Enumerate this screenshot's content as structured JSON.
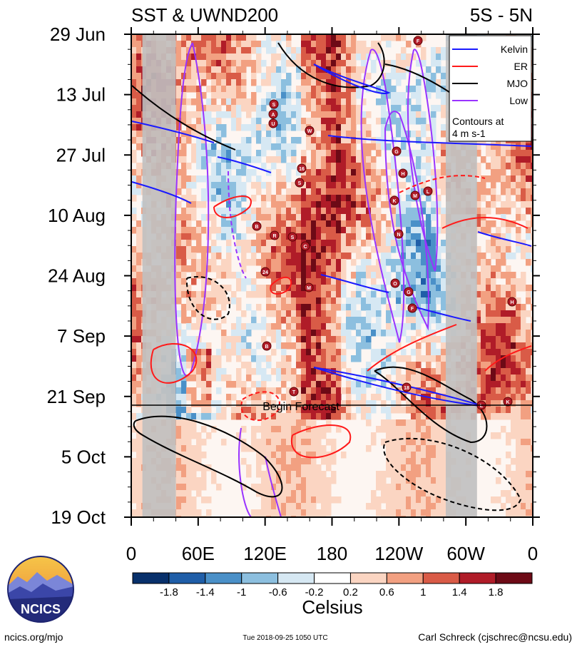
{
  "chart_data": {
    "type": "heatmap",
    "title_left": "SST & UWND200",
    "title_right": "5S - 5N",
    "y_ticks": [
      "29 Jun",
      "13 Jul",
      "27 Jul",
      "10 Aug",
      "24 Aug",
      "7 Sep",
      "21 Sep",
      "5 Oct",
      "19 Oct"
    ],
    "x_ticks": [
      "0",
      "60E",
      "120E",
      "180",
      "120W",
      "60W",
      "0"
    ],
    "x_range_deg": [
      0,
      360
    ],
    "y_range": [
      "29 Jun 2018",
      "19 Oct 2018"
    ],
    "forecast_label": "Begin Forecast",
    "forecast_date": "2018-09-25",
    "legend": {
      "entries": [
        {
          "name": "Kelvin",
          "color": "#1a1aff"
        },
        {
          "name": "ER",
          "color": "#ff1a1a"
        },
        {
          "name": "MJO",
          "color": "#000000"
        },
        {
          "name": "Low",
          "color": "#9933ff"
        }
      ],
      "note_line1": "Contours at",
      "note_line2": "4 m s-1",
      "placement": "top-right"
    },
    "colorbar": {
      "tick_labels": [
        "-1.8",
        "-1.4",
        "-1",
        "-0.6",
        "-0.2",
        "0.2",
        "0.6",
        "1",
        "1.4",
        "1.8"
      ],
      "colors": [
        "#08306b",
        "#1f5ea8",
        "#4a90c8",
        "#8cbfdf",
        "#d6e8f3",
        "#ffffff",
        "#fbd5c2",
        "#f2a081",
        "#d95b47",
        "#b01c28",
        "#6d0a16"
      ],
      "label": "Celsius"
    },
    "land_mask_bands_deg": [
      [
        10,
        40
      ],
      [
        282,
        310
      ]
    ],
    "tropical_cyclone_letters": [
      "S",
      "A",
      "U",
      "W",
      "16",
      "S",
      "B",
      "R",
      "S",
      "C",
      "24",
      "M",
      "B",
      "T",
      "F",
      "H",
      "G",
      "K",
      "L",
      "M",
      "N",
      "O",
      "G",
      "F",
      "H",
      "18",
      "L",
      "K"
    ]
  },
  "footer": {
    "logo_text": "NCICS",
    "site": "ncics.org/mjo",
    "timestamp": "Tue 2018-09-25 1050 UTC",
    "author": "Carl Schreck (cjschrec@ncsu.edu)"
  }
}
